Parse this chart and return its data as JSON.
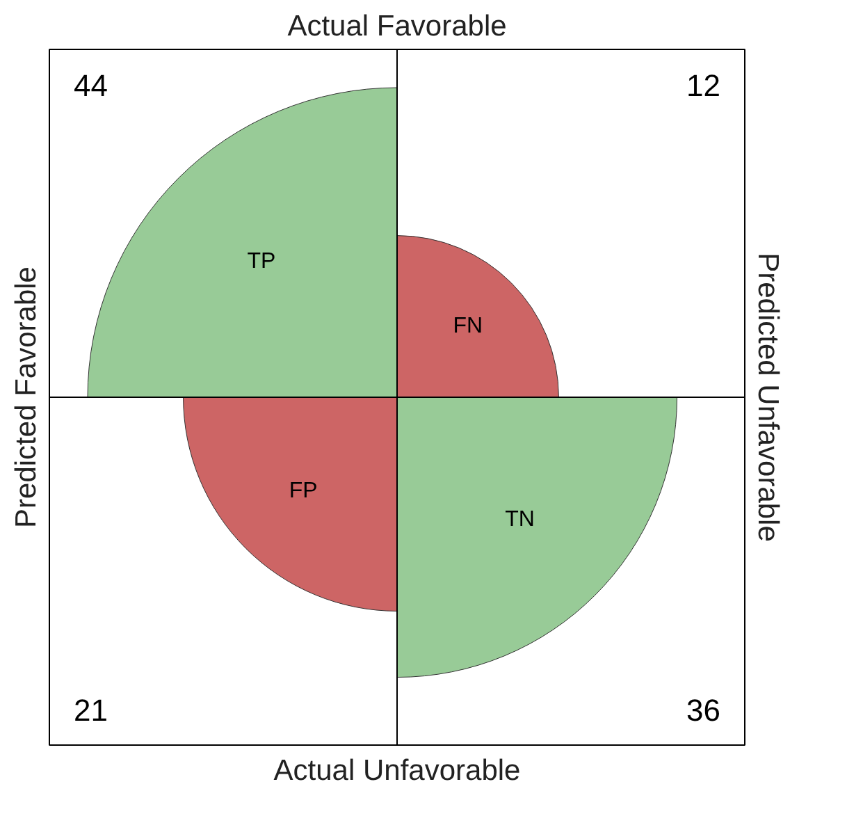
{
  "chart_data": {
    "type": "other",
    "xlabel": "Actual Unfavorable",
    "x2label": "Actual Favorable",
    "ylabel": "Predicted Favorable",
    "y2label": "Predicted Unfavorable",
    "categories": [
      "TP",
      "FN",
      "FP",
      "TN"
    ],
    "values": [
      44,
      12,
      21,
      36
    ],
    "colors": [
      "#98cb97",
      "#cd6565",
      "#cd6565",
      "#98cb97"
    ],
    "data_labels": true
  }
}
